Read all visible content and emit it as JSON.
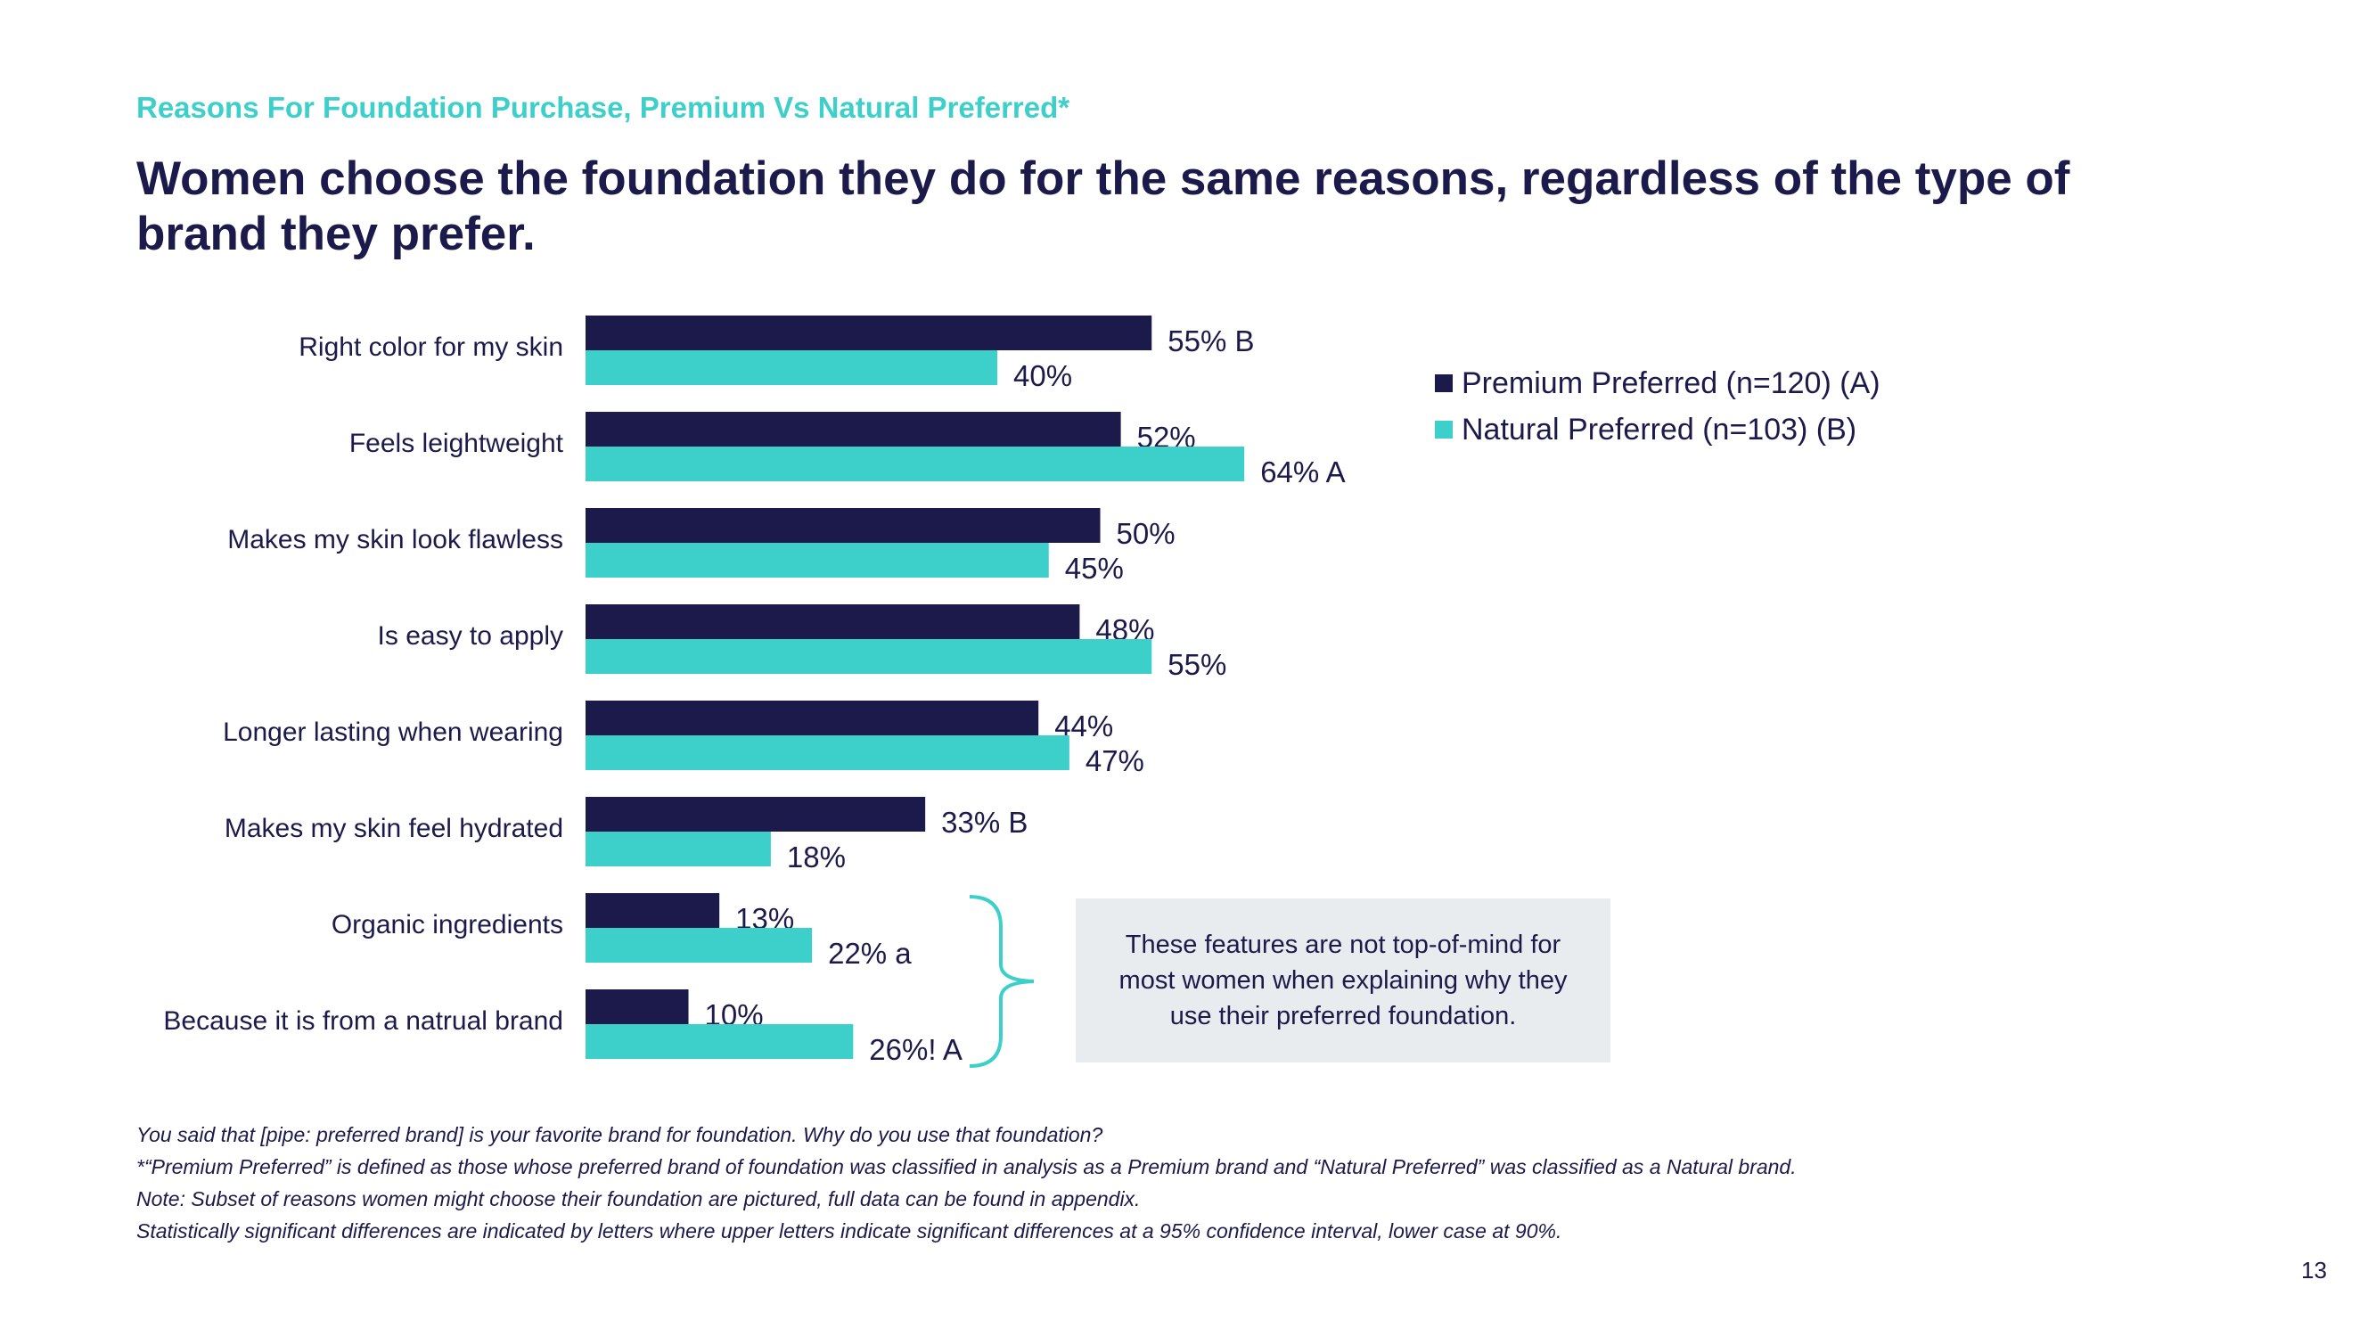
{
  "header": {
    "subtitle": "Reasons For Foundation Purchase, Premium Vs Natural Preferred*",
    "title": "Women choose the foundation they do for the same reasons, regardless of the type of brand they prefer."
  },
  "legend": {
    "premium": "Premium Preferred (n=120) (A)",
    "natural": "Natural Preferred (n=103) (B)"
  },
  "callout": {
    "text": "These features are not top-of-mind for most women when explaining why they use their preferred foundation."
  },
  "footnotes": [
    "You said that [pipe: preferred brand] is your favorite brand for foundation. Why do you use that foundation?",
    "*“Premium Preferred” is defined as those whose preferred brand of foundation was classified in analysis as a Premium brand and “Natural Preferred” was classified as a Natural brand.",
    "Note: Subset of reasons women might choose their foundation are pictured, full data can be found in appendix.",
    "Statistically significant differences are indicated by letters where upper letters indicate significant differences at a 95% confidence interval, lower case at 90%."
  ],
  "page_number": "13",
  "colors": {
    "premium": "#1c1a4b",
    "natural": "#3dcfca",
    "bracket": "#3dcfca"
  },
  "chart_data": {
    "type": "bar",
    "orientation": "horizontal",
    "title": "Reasons For Foundation Purchase, Premium Vs Natural Preferred*",
    "categories": [
      "Right color for my skin",
      "Feels leightweight",
      "Makes my skin look flawless",
      "Is easy to apply",
      "Longer lasting when wearing",
      "Makes my skin feel hydrated",
      "Organic ingredients",
      "Because it is from a natrual brand"
    ],
    "series": [
      {
        "name": "Premium Preferred (n=120) (A)",
        "values": [
          55,
          52,
          50,
          48,
          44,
          33,
          13,
          10
        ],
        "labels": [
          "55% B",
          "52%",
          "50%",
          "48%",
          "44%",
          "33% B",
          "13%",
          "10%"
        ]
      },
      {
        "name": "Natural Preferred (n=103) (B)",
        "values": [
          40,
          64,
          45,
          55,
          47,
          18,
          22,
          26
        ],
        "labels": [
          "40%",
          "64% A",
          "45%",
          "55%",
          "47%",
          "18%",
          "22% a",
          "26%! A"
        ]
      }
    ],
    "xlim": [
      0,
      100
    ],
    "grid": false,
    "legend_position": "right"
  }
}
